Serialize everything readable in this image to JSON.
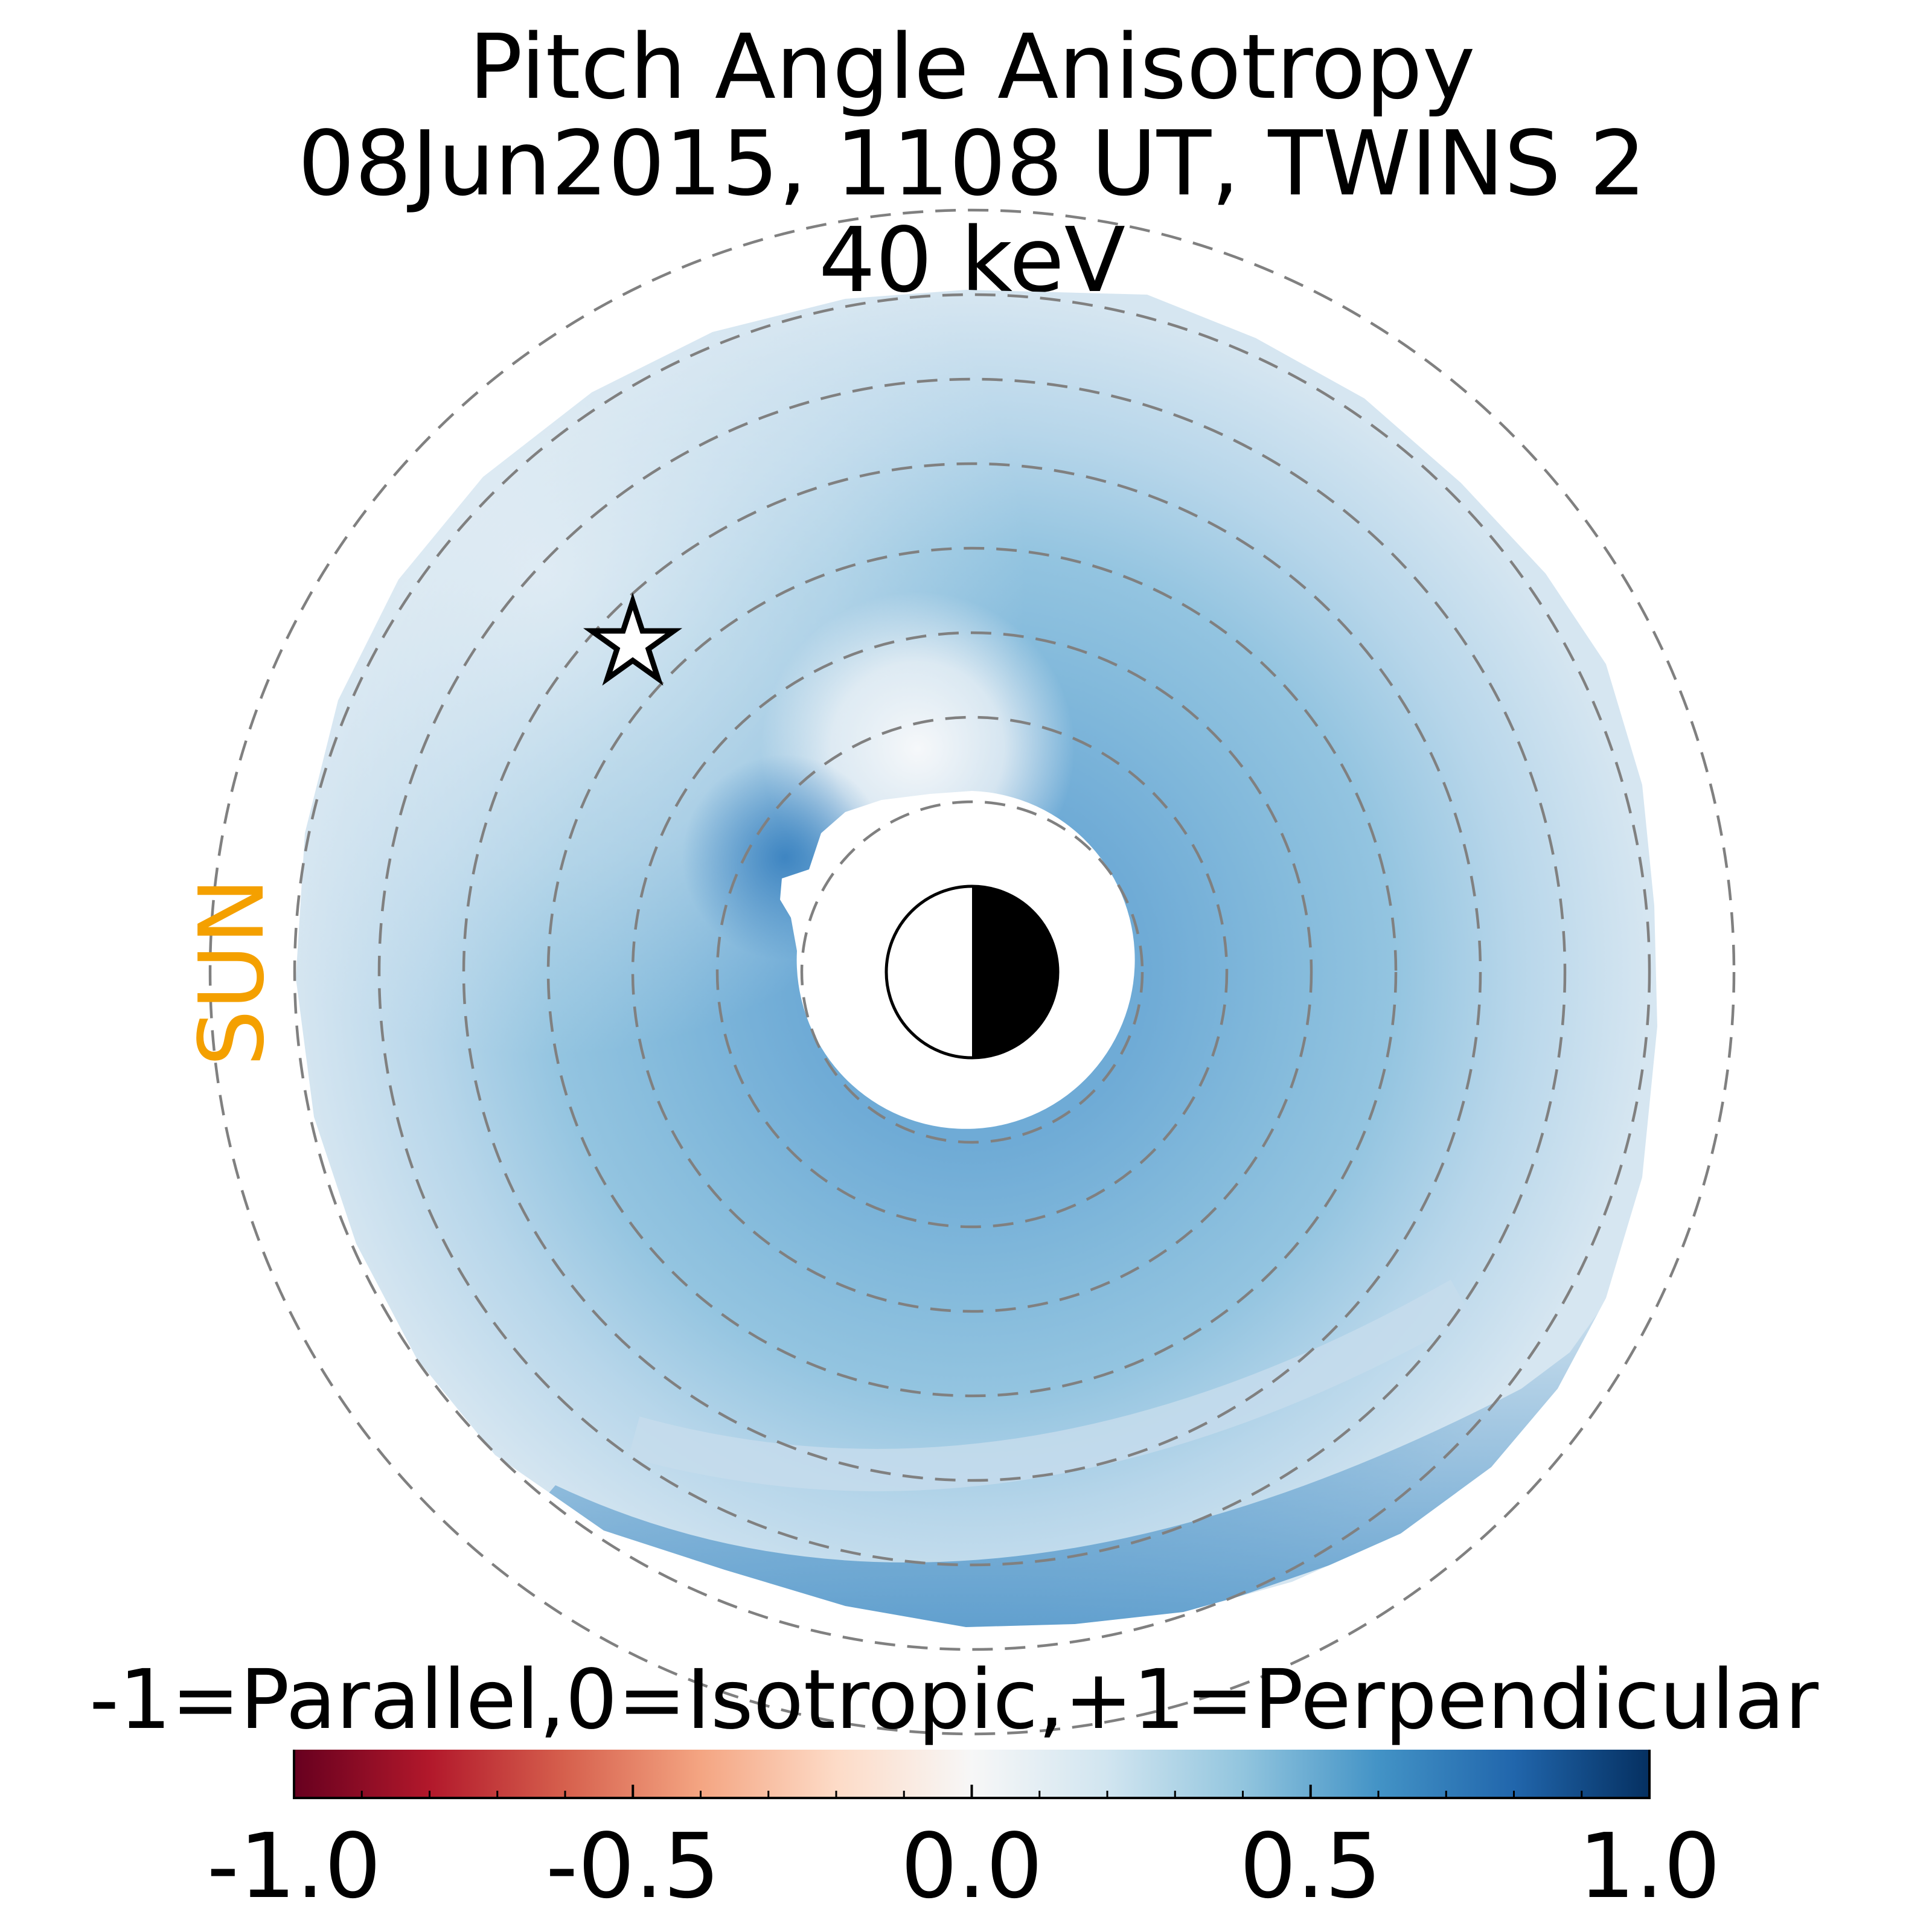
{
  "chart_data": {
    "type": "heatmap",
    "projection": "polar",
    "title": [
      "Pitch Angle Anisotropy",
      "08Jun2015, 1108 UT,  TWINS 2",
      "40 keV"
    ],
    "sun_label": "SUN",
    "sun_direction": "left",
    "colorbar": {
      "label": "-1=Parallel,0=Isotropic,+1=Perpendicular",
      "range": [
        -1.0,
        1.0
      ],
      "ticks": [
        -1.0,
        -0.5,
        0.0,
        0.5,
        1.0
      ],
      "tick_labels": [
        "-1.0",
        "-0.5",
        "0.0",
        "0.5",
        "1.0"
      ],
      "colormap": "RdBu",
      "stops": [
        "#67001f",
        "#b2182b",
        "#d6604d",
        "#f4a582",
        "#fddbc7",
        "#f7f7f7",
        "#d1e5f0",
        "#92c5de",
        "#4393c6",
        "#2166ac",
        "#053061"
      ]
    },
    "radial_ring_count": 8,
    "earth_symbol": "half-shaded-circle",
    "marker": "star",
    "description_values": {
      "outer_region_anisotropy": 0.15,
      "middle_region_anisotropy": 0.4,
      "inner_region_anisotropy": 0.45,
      "near_noon_inner_anisotropy": 0.0,
      "dusk_outer_arc_anisotropy": 0.55
    },
    "grid": true
  }
}
